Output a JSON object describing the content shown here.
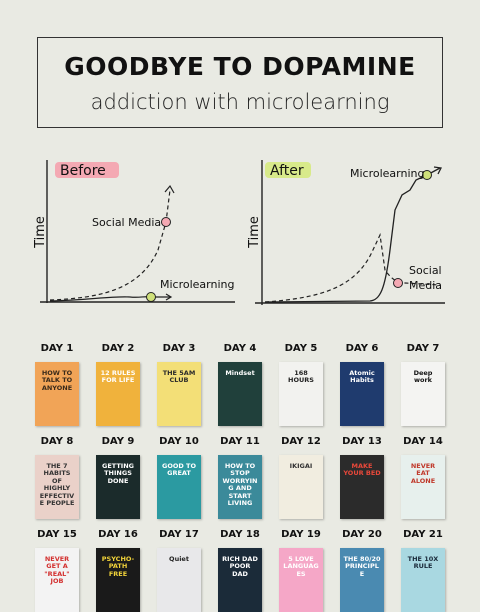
{
  "header": {
    "title": "GOODBYE TO DOPAMINE",
    "subtitle": "addiction with microlearning"
  },
  "graphs": [
    {
      "label": "Before",
      "axis": "Time",
      "labels": [
        "Social Media",
        "Microlearning"
      ]
    },
    {
      "label": "After",
      "axis": "Time",
      "labels": [
        "Microlearning",
        "Social",
        "Media"
      ]
    }
  ],
  "days": [
    {
      "label": "DAY 1",
      "book": "HOW TO TALK TO ANYONE"
    },
    {
      "label": "DAY 2",
      "book": "12 RULES FOR LIFE"
    },
    {
      "label": "DAY 3",
      "book": "THE 5AM CLUB"
    },
    {
      "label": "DAY 4",
      "book": "Mindset"
    },
    {
      "label": "DAY 5",
      "book": "168 HOURS"
    },
    {
      "label": "DAY 6",
      "book": "Atomic Habits"
    },
    {
      "label": "DAY 7",
      "book": "Deep work"
    },
    {
      "label": "DAY 8",
      "book": "THE 7 HABITS OF HIGHLY EFFECTIVE PEOPLE"
    },
    {
      "label": "DAY 9",
      "book": "GETTING THINGS DONE"
    },
    {
      "label": "DAY 10",
      "book": "GOOD TO GREAT"
    },
    {
      "label": "DAY 11",
      "book": "HOW TO STOP WORRYING AND START LIVING"
    },
    {
      "label": "DAY 12",
      "book": "IKIGAI"
    },
    {
      "label": "DAY 13",
      "book": "MAKE YOUR BED"
    },
    {
      "label": "DAY 14",
      "book": "NEVER EAT ALONE"
    },
    {
      "label": "DAY 15",
      "book": "NEVER GET A \"REAL\" JOB"
    },
    {
      "label": "DAY 16",
      "book": "PSYCHO-PATH FREE"
    },
    {
      "label": "DAY 17",
      "book": "Quiet"
    },
    {
      "label": "DAY 18",
      "book": "RICH DAD POOR DAD"
    },
    {
      "label": "DAY 19",
      "book": "5 LOVE LANGUAGES"
    },
    {
      "label": "DAY 20",
      "book": "THE 80/20 PRINCIPLE"
    },
    {
      "label": "DAY 21",
      "book": "THE 10X RULE"
    }
  ]
}
